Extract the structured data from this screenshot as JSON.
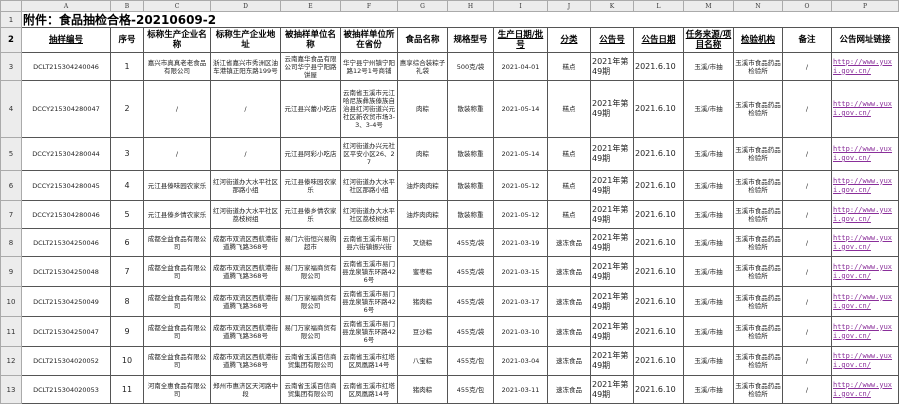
{
  "columns": [
    "A",
    "B",
    "C",
    "D",
    "E",
    "F",
    "G",
    "H",
    "I",
    "J",
    "K",
    "L",
    "M",
    "N",
    "O",
    "P"
  ],
  "title": "附件：食品抽检合格-20210609-2",
  "headers": [
    "抽样编号",
    "序号",
    "标称生产企业名称",
    "标称生产企业地址",
    "被抽样单位名称",
    "被抽样单位所在省份",
    "食品名称",
    "规格型号",
    "生产日期/批号",
    "分类",
    "公告号",
    "公告日期",
    "任务来源/项目名称",
    "检验机构",
    "备注",
    "公告网址链接"
  ],
  "rows": [
    [
      "DCLT215304240046",
      "1",
      "嘉兴市真真老老食品有限公司",
      "浙江省嘉兴市秀洲区油车港镇正阳东路199号",
      "云南嘉华食品有限公司华宁县宁阳路饼屋",
      "华宁县宁州镇宁阳路12号1号商铺",
      "惠享综合装粽子礼袋",
      "500克/袋",
      "2021-04-01",
      "糕点",
      "2021年第49期",
      "2021.6.10",
      "玉溪/市抽",
      "玉溪市食品药品检验所",
      "/",
      "http://www.yuxi.gov.cn/"
    ],
    [
      "DCCY215304280047",
      "2",
      "/",
      "/",
      "元江县兴蕾小吃店",
      "云南省玉溪市元江哈尼族彝族傣族自治县红河街道兴元社区新农贸市场3-3、3-4号",
      "肉粽",
      "散装称重",
      "2021-05-14",
      "糕点",
      "2021年第49期",
      "2021.6.10",
      "玉溪/市抽",
      "玉溪市食品药品检验所",
      "/",
      "http://www.yuxi.gov.cn/"
    ],
    [
      "DCCY215304280044",
      "3",
      "/",
      "/",
      "元江县阿彩小吃店",
      "红河街道办兴元社区平安小区26、27",
      "肉粽",
      "散装称重",
      "2021-05-14",
      "糕点",
      "2021年第49期",
      "2021.6.10",
      "玉溪/市抽",
      "玉溪市食品药品检验所",
      "/",
      "http://www.yuxi.gov.cn/"
    ],
    [
      "DCCY215304280045",
      "4",
      "元江县傣味园农家乐",
      "红河街道办大水平社区那路小组",
      "元江县傣味园农家乐",
      "红河街道办大水平社区那路小组",
      "油炸肉肉粽",
      "散装称重",
      "2021-05-12",
      "糕点",
      "2021年第49期",
      "2021.6.10",
      "玉溪/市抽",
      "玉溪市食品药品检验所",
      "/",
      "http://www.yuxi.gov.cn/"
    ],
    [
      "DCCY215304280046",
      "5",
      "元江县傣乡情农家乐",
      "红河街道办大水平社区荔枝树组",
      "元江县傣乡情农家乐",
      "红河街道办大水平社区荔枝树组",
      "油炸肉肉粽",
      "散装称重",
      "2021-05-12",
      "糕点",
      "2021年第49期",
      "2021.6.10",
      "玉溪/市抽",
      "玉溪市食品药品检验所",
      "/",
      "http://www.yuxi.gov.cn/"
    ],
    [
      "DCLT215304250046",
      "6",
      "成都全益食品有限公司",
      "成都市双流区西航港街道腾飞路368号",
      "易门六街恒兴易购超市",
      "云南省玉溪市易门县六街镇振兴街",
      "叉烧粽",
      "455克/袋",
      "2021-03-19",
      "速冻食品",
      "2021年第49期",
      "2021.6.10",
      "玉溪/市抽",
      "玉溪市食品药品检验所",
      "/",
      "http://www.yuxi.gov.cn/"
    ],
    [
      "DCLT215304250048",
      "7",
      "成都全益食品有限公司",
      "成都市双流区西航港街道腾飞路368号",
      "易门万家福商贸有限公司",
      "云南省玉溪市易门县龙泉镇东环路426号",
      "蜜枣粽",
      "455克/袋",
      "2021-03-15",
      "速冻食品",
      "2021年第49期",
      "2021.6.10",
      "玉溪/市抽",
      "玉溪市食品药品检验所",
      "/",
      "http://www.yuxi.gov.cn/"
    ],
    [
      "DCLT215304250049",
      "8",
      "成都全益食品有限公司",
      "成都市双流区西航港街道腾飞路368号",
      "易门万家福商贸有限公司",
      "云南省玉溪市易门县龙泉镇东环路426号",
      "猪肉粽",
      "455克/袋",
      "2021-03-17",
      "速冻食品",
      "2021年第49期",
      "2021.6.10",
      "玉溪/市抽",
      "玉溪市食品药品检验所",
      "/",
      "http://www.yuxi.gov.cn/"
    ],
    [
      "DCLT215304250047",
      "9",
      "成都全益食品有限公司",
      "成都市双流区西航港街道腾飞路368号",
      "易门万家福商贸有限公司",
      "云南省玉溪市易门县龙泉镇东环路426号",
      "豆沙粽",
      "455克/袋",
      "2021-03-10",
      "速冻食品",
      "2021年第49期",
      "2021.6.10",
      "玉溪/市抽",
      "玉溪市食品药品检验所",
      "/",
      "http://www.yuxi.gov.cn/"
    ],
    [
      "DCLT215304020052",
      "10",
      "成都全益食品有限公司",
      "成都市双流区西航港街道腾飞路368号",
      "云南省玉溪百信商贸集团有限公司",
      "云南省玉溪市红塔区凤凰路14号",
      "八宝粽",
      "455克/包",
      "2021-03-04",
      "速冻食品",
      "2021年第49期",
      "2021.6.10",
      "玉溪/市抽",
      "玉溪市食品药品检验所",
      "/",
      "http://www.yuxi.gov.cn/"
    ],
    [
      "DCLT215304020053",
      "11",
      "河南全惠食品有限公司",
      "郑州市惠济区天河路中段",
      "云南省玉溪百信商贸集团有限公司",
      "云南省玉溪市红塔区凤凰路14号",
      "猪肉粽",
      "455克/包",
      "2021-03-11",
      "速冻食品",
      "2021年第49期",
      "2021.6.10",
      "玉溪/市抽",
      "玉溪市食品药品检验所",
      "/",
      "http://www.yuxi.gov.cn/"
    ]
  ]
}
